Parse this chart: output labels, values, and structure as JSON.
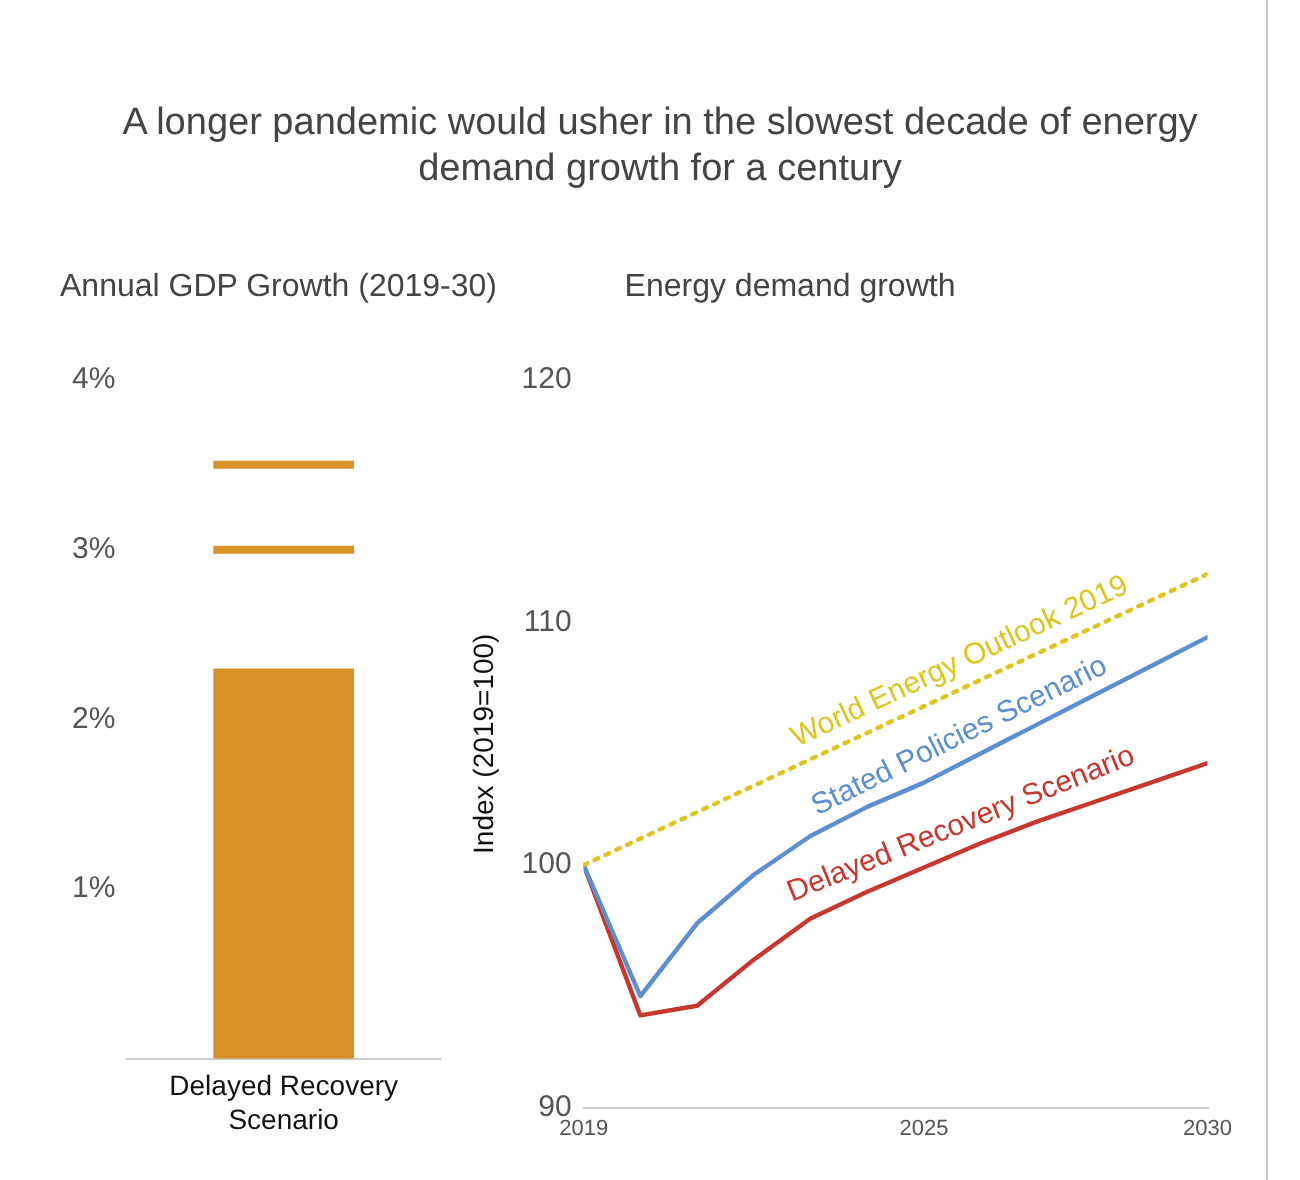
{
  "chart_data": [
    {
      "type": "bar",
      "title": "A longer pandemic would usher in the slowest decade of energy demand growth for a century",
      "subtitle": "Annual GDP Growth (2019-30)",
      "categories": [
        "Delayed Recovery Scenario"
      ],
      "series": [
        {
          "type": "bar",
          "color": "#d99227",
          "values": [
            2.3
          ]
        }
      ],
      "ref_lines": [
        {
          "axis": "y",
          "value": 3.0,
          "color": "#d99227"
        },
        {
          "axis": "y",
          "value": 3.5,
          "color": "#d99227"
        }
      ],
      "ylim": [
        0,
        4
      ],
      "yticks": [
        {
          "value": 1,
          "label": "1%"
        },
        {
          "value": 2,
          "label": "2%"
        },
        {
          "value": 3,
          "label": "3%"
        },
        {
          "value": 4,
          "label": "4%"
        }
      ],
      "grid": false,
      "legend": false
    },
    {
      "type": "line",
      "title": "Energy demand growth",
      "ylabel": "Index (2019=100)",
      "x": [
        2019,
        2020,
        2021,
        2022,
        2023,
        2024,
        2025,
        2026,
        2027,
        2028,
        2029,
        2030
      ],
      "series": [
        {
          "name": "World Energy Outlook 2019",
          "color": "#dcc51e",
          "line_style": "dotted",
          "x": [
            2019,
            2030
          ],
          "values": [
            100,
            112
          ]
        },
        {
          "name": "Stated Policies Scenario",
          "color": "#5b8fd0",
          "line_style": "solid",
          "values": [
            100,
            94.6,
            97.6,
            99.6,
            101.2,
            102.4,
            103.4,
            104.6,
            105.8,
            107.0,
            108.2,
            109.4
          ]
        },
        {
          "name": "Delayed Recovery Scenario",
          "color": "#c8372d",
          "line_style": "solid",
          "values": [
            100,
            93.8,
            94.2,
            96.1,
            97.8,
            98.9,
            99.9,
            100.9,
            101.8,
            102.6,
            103.4,
            104.2
          ]
        }
      ],
      "xlim": [
        2019,
        2030
      ],
      "xticks": [
        2019,
        2025,
        2030
      ],
      "ylim": [
        90,
        120
      ],
      "yticks": [
        90,
        100,
        110,
        120
      ],
      "grid": false,
      "legend": false,
      "marker": "none"
    }
  ]
}
